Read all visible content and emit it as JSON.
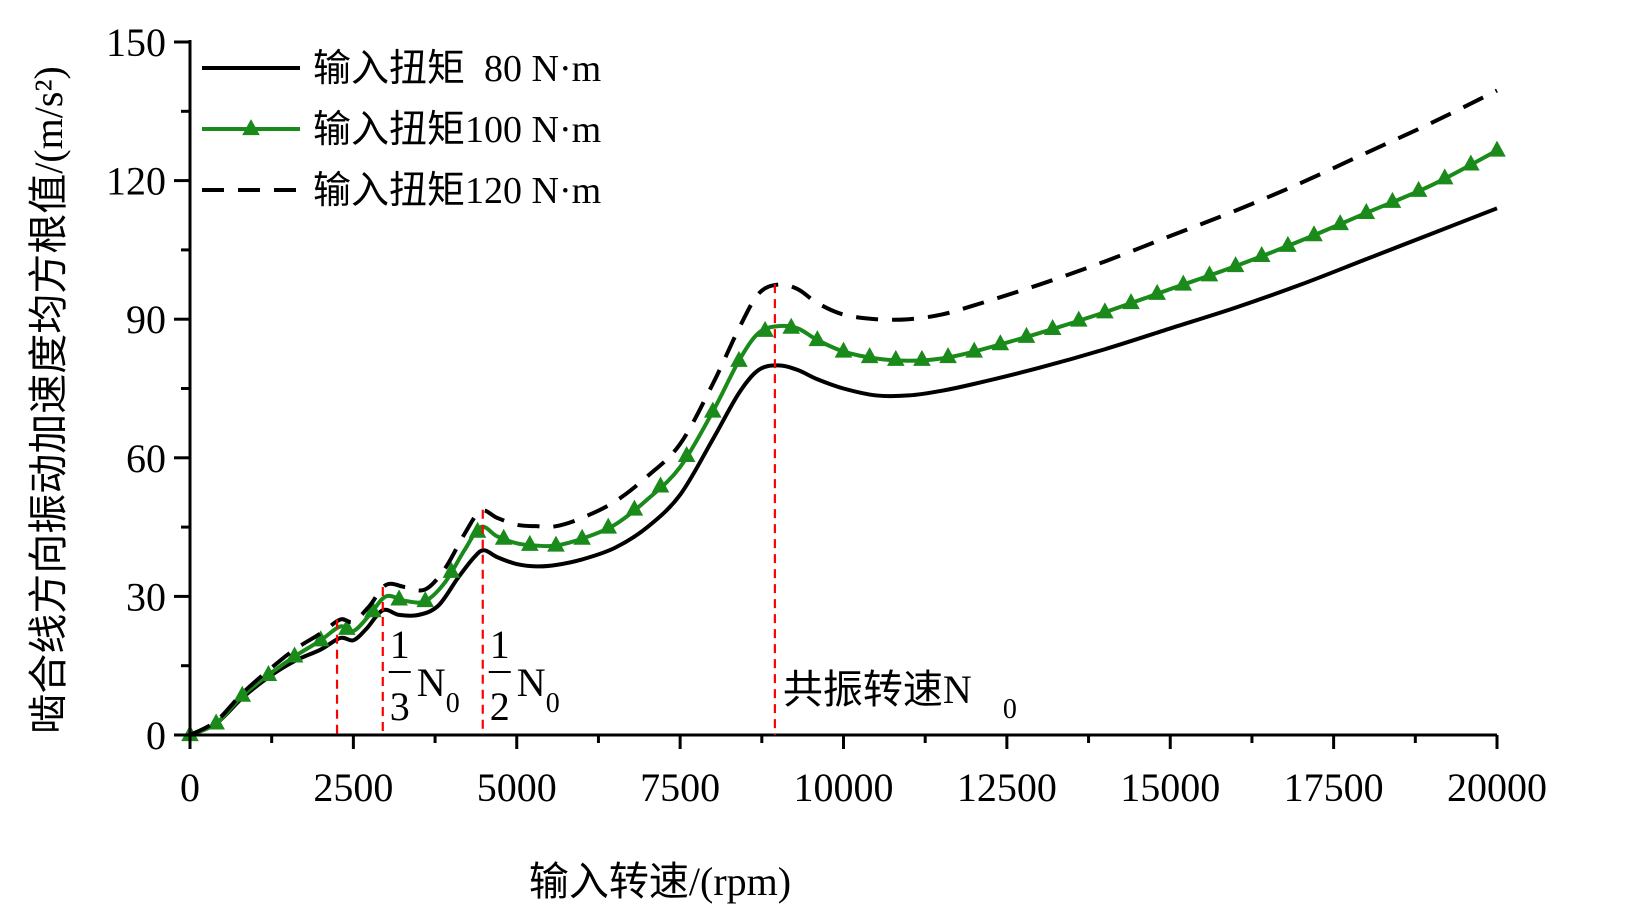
{
  "chart_data": {
    "type": "line",
    "xlabel": "输入转速/(rpm)",
    "ylabel": "啮合线方向振动加速度均方根值/(m/s²)",
    "xlim": [
      0,
      20000
    ],
    "ylim": [
      0,
      150
    ],
    "x_ticks": [
      "0",
      "2500",
      "5000",
      "7500",
      "10000",
      "12500",
      "15000",
      "17500",
      "20000"
    ],
    "y_ticks": [
      "0",
      "30",
      "60",
      "90",
      "120",
      "150"
    ],
    "grid": false,
    "legend_position": "top-left",
    "series": [
      {
        "name": "输入扭矩  80 N·m",
        "style": "solid",
        "color": "#000000",
        "points": [
          [
            0,
            0
          ],
          [
            400,
            2.5
          ],
          [
            800,
            8
          ],
          [
            1200,
            12.5
          ],
          [
            1600,
            16
          ],
          [
            2000,
            18.5
          ],
          [
            2300,
            21
          ],
          [
            2500,
            20.5
          ],
          [
            2700,
            23
          ],
          [
            2950,
            27
          ],
          [
            3200,
            26
          ],
          [
            3500,
            26
          ],
          [
            3800,
            28
          ],
          [
            4100,
            34
          ],
          [
            4350,
            38.5
          ],
          [
            4500,
            40
          ],
          [
            4700,
            38.5
          ],
          [
            5000,
            37
          ],
          [
            5300,
            36.5
          ],
          [
            5600,
            36.8
          ],
          [
            6000,
            38
          ],
          [
            6500,
            40.5
          ],
          [
            7000,
            45
          ],
          [
            7500,
            52
          ],
          [
            8000,
            64
          ],
          [
            8400,
            74
          ],
          [
            8700,
            79
          ],
          [
            9000,
            80
          ],
          [
            9300,
            79
          ],
          [
            9600,
            77
          ],
          [
            10000,
            75
          ],
          [
            10500,
            73.5
          ],
          [
            11000,
            73.5
          ],
          [
            11500,
            74.5
          ],
          [
            12000,
            76
          ],
          [
            13000,
            79.5
          ],
          [
            14000,
            83.5
          ],
          [
            15000,
            88
          ],
          [
            16000,
            92.5
          ],
          [
            17000,
            97.5
          ],
          [
            18000,
            103
          ],
          [
            19000,
            108.5
          ],
          [
            20000,
            114
          ]
        ]
      },
      {
        "name": "输入扭矩100 N·m",
        "style": "solid-triangle",
        "color": "#1a8a1a",
        "points": [
          [
            0,
            0
          ],
          [
            400,
            2.5
          ],
          [
            800,
            8.5
          ],
          [
            1200,
            13
          ],
          [
            1600,
            17
          ],
          [
            2000,
            20.5
          ],
          [
            2300,
            23.5
          ],
          [
            2500,
            22.5
          ],
          [
            2750,
            26
          ],
          [
            3000,
            30
          ],
          [
            3300,
            29
          ],
          [
            3600,
            29
          ],
          [
            3900,
            33
          ],
          [
            4200,
            40
          ],
          [
            4450,
            45
          ],
          [
            4700,
            43
          ],
          [
            5000,
            41.5
          ],
          [
            5300,
            41
          ],
          [
            5600,
            41
          ],
          [
            6000,
            42.5
          ],
          [
            6500,
            45.5
          ],
          [
            7000,
            51
          ],
          [
            7500,
            58
          ],
          [
            8000,
            70
          ],
          [
            8400,
            81
          ],
          [
            8700,
            87
          ],
          [
            9000,
            88.5
          ],
          [
            9300,
            88
          ],
          [
            9600,
            85.5
          ],
          [
            10000,
            83
          ],
          [
            10500,
            81.5
          ],
          [
            11000,
            81
          ],
          [
            11500,
            81.5
          ],
          [
            12000,
            83
          ],
          [
            13000,
            87
          ],
          [
            14000,
            91.5
          ],
          [
            15000,
            96.5
          ],
          [
            16000,
            101.5
          ],
          [
            17000,
            107
          ],
          [
            18000,
            113
          ],
          [
            19000,
            119
          ],
          [
            20000,
            126.5
          ]
        ]
      },
      {
        "name": "输入扭矩120 N·m",
        "style": "dashed",
        "color": "#000000",
        "points": [
          [
            0,
            0
          ],
          [
            400,
            3
          ],
          [
            800,
            9
          ],
          [
            1200,
            14
          ],
          [
            1600,
            18.5
          ],
          [
            2000,
            22
          ],
          [
            2300,
            25
          ],
          [
            2500,
            24.5
          ],
          [
            2750,
            28
          ],
          [
            3000,
            32.5
          ],
          [
            3300,
            32
          ],
          [
            3600,
            31.5
          ],
          [
            3900,
            36
          ],
          [
            4200,
            43.5
          ],
          [
            4450,
            48.5
          ],
          [
            4700,
            47
          ],
          [
            5000,
            45.5
          ],
          [
            5300,
            45.2
          ],
          [
            5600,
            45.2
          ],
          [
            6000,
            47
          ],
          [
            6500,
            50.5
          ],
          [
            7000,
            56
          ],
          [
            7500,
            63
          ],
          [
            8000,
            76
          ],
          [
            8400,
            88
          ],
          [
            8700,
            95.5
          ],
          [
            9000,
            97.5
          ],
          [
            9300,
            96.5
          ],
          [
            9600,
            93.5
          ],
          [
            10000,
            91
          ],
          [
            10500,
            90
          ],
          [
            11000,
            90
          ],
          [
            11500,
            91
          ],
          [
            12000,
            93
          ],
          [
            13000,
            97.5
          ],
          [
            14000,
            102.5
          ],
          [
            15000,
            108
          ],
          [
            16000,
            113.5
          ],
          [
            17000,
            119.5
          ],
          [
            18000,
            126
          ],
          [
            19000,
            132.5
          ],
          [
            20000,
            139.5
          ]
        ]
      }
    ],
    "markers": [
      {
        "x": 2250,
        "label_top": "",
        "label_main": "",
        "subscript": ""
      },
      {
        "x": 2950,
        "label_top": "1",
        "label_bottom": "3",
        "label_main": "N",
        "subscript": "0"
      },
      {
        "x": 4480,
        "label_top": "1",
        "label_bottom": "2",
        "label_main": "N",
        "subscript": "0"
      },
      {
        "x": 8950,
        "label_top": "",
        "label_bottom": "",
        "label_main": "共振转速N",
        "subscript": "0"
      }
    ],
    "marker_color": "#ff0000"
  }
}
